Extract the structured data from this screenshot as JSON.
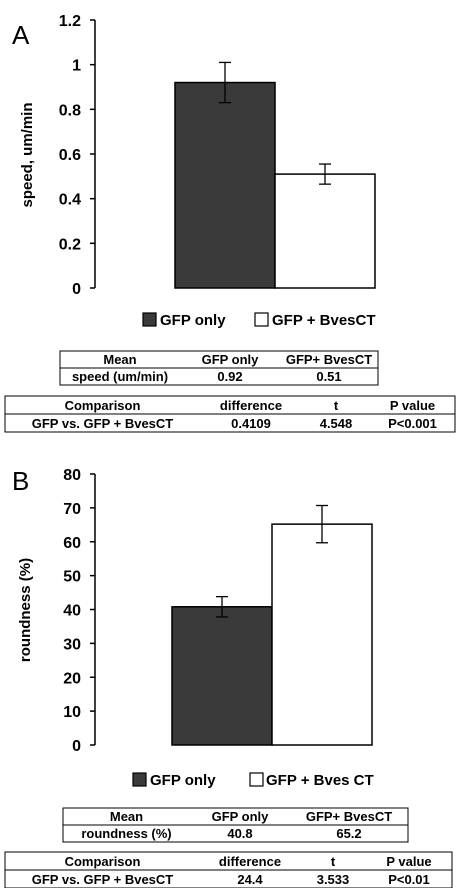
{
  "chart_data": [
    {
      "type": "bar",
      "panel_label": "A",
      "ylabel": "speed, um/min",
      "ylim": [
        0,
        1.2
      ],
      "yticks": [
        "0",
        "0.2",
        "0.4",
        "0.6",
        "0.8",
        "1",
        "1.2"
      ],
      "series": [
        {
          "name": "GFP only",
          "values": [
            0.92
          ],
          "error": [
            0.09
          ],
          "color": "#3a3a3a"
        },
        {
          "name": "GFP + BvesCT",
          "values": [
            0.51
          ],
          "error": [
            0.045
          ],
          "color": "#ffffff"
        }
      ],
      "mean_table": {
        "headers": [
          "Mean",
          "GFP only",
          "GFP+ BvesCT"
        ],
        "rows": [
          [
            "speed (um/min)",
            "0.92",
            "0.51"
          ]
        ]
      },
      "comparison_table": {
        "headers": [
          "Comparison",
          "difference",
          "t",
          "P value"
        ],
        "rows": [
          [
            "GFP vs. GFP + BvesCT",
            "0.4109",
            "4.548",
            "P<0.001"
          ]
        ]
      }
    },
    {
      "type": "bar",
      "panel_label": "B",
      "ylabel": "roundness (%)",
      "ylim": [
        0,
        80
      ],
      "yticks": [
        "0",
        "10",
        "20",
        "30",
        "40",
        "50",
        "60",
        "70",
        "80"
      ],
      "series": [
        {
          "name": "GFP only",
          "values": [
            40.8
          ],
          "error": [
            3.0
          ],
          "color": "#3a3a3a"
        },
        {
          "name": "GFP + Bves CT",
          "values": [
            65.2
          ],
          "error": [
            5.5
          ],
          "color": "#ffffff"
        }
      ],
      "mean_table": {
        "headers": [
          "Mean",
          "GFP only",
          "GFP+ BvesCT"
        ],
        "rows": [
          [
            "roundness (%)",
            "40.8",
            "65.2"
          ]
        ]
      },
      "comparison_table": {
        "headers": [
          "Comparison",
          "difference",
          "t",
          "P value"
        ],
        "rows": [
          [
            "GFP vs. GFP + BvesCT",
            "24.4",
            "3.533",
            "P<0.01"
          ]
        ]
      }
    }
  ]
}
